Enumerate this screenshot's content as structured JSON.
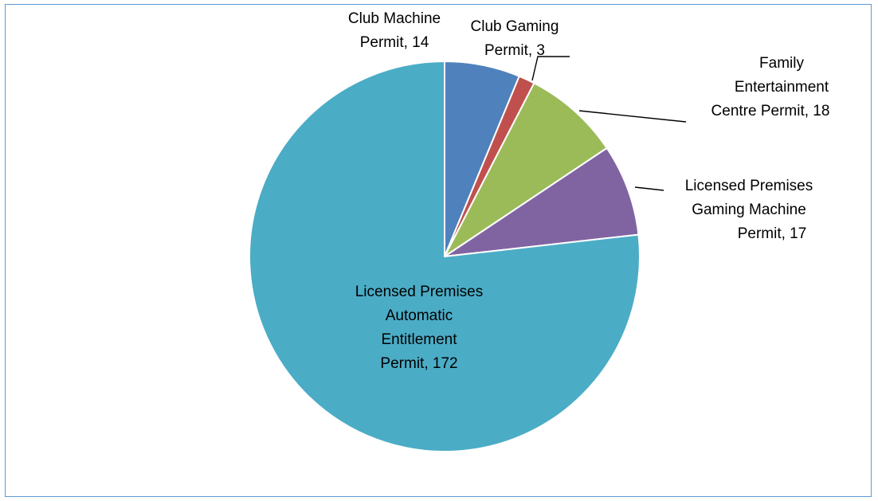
{
  "chart_data": {
    "type": "pie",
    "title": "",
    "categories": [
      "Club Machine Permit",
      "Club Gaming Permit",
      "Family Entertainment Centre Permit",
      "Licensed Premises Gaming Machine Permit",
      "Licensed Premises Automatic Entitlement Permit"
    ],
    "values": [
      14,
      3,
      18,
      17,
      172
    ],
    "colors": [
      "#4f81bd",
      "#c0504d",
      "#9bbb59",
      "#8064a2",
      "#4bacc6"
    ],
    "slice_labels": [
      [
        "Club Machine",
        "Permit, 14"
      ],
      [
        "Club Gaming",
        "Permit, 3"
      ],
      [
        "Family",
        "Entertainment",
        "Centre Permit, 18"
      ],
      [
        "Licensed Premises",
        "Gaming Machine",
        "Permit, 17"
      ],
      [
        "Licensed Premises",
        "Automatic",
        "Entitlement",
        "Permit, 172"
      ]
    ],
    "legend": "none",
    "start_angle": "12 o'clock",
    "direction": "clockwise"
  }
}
